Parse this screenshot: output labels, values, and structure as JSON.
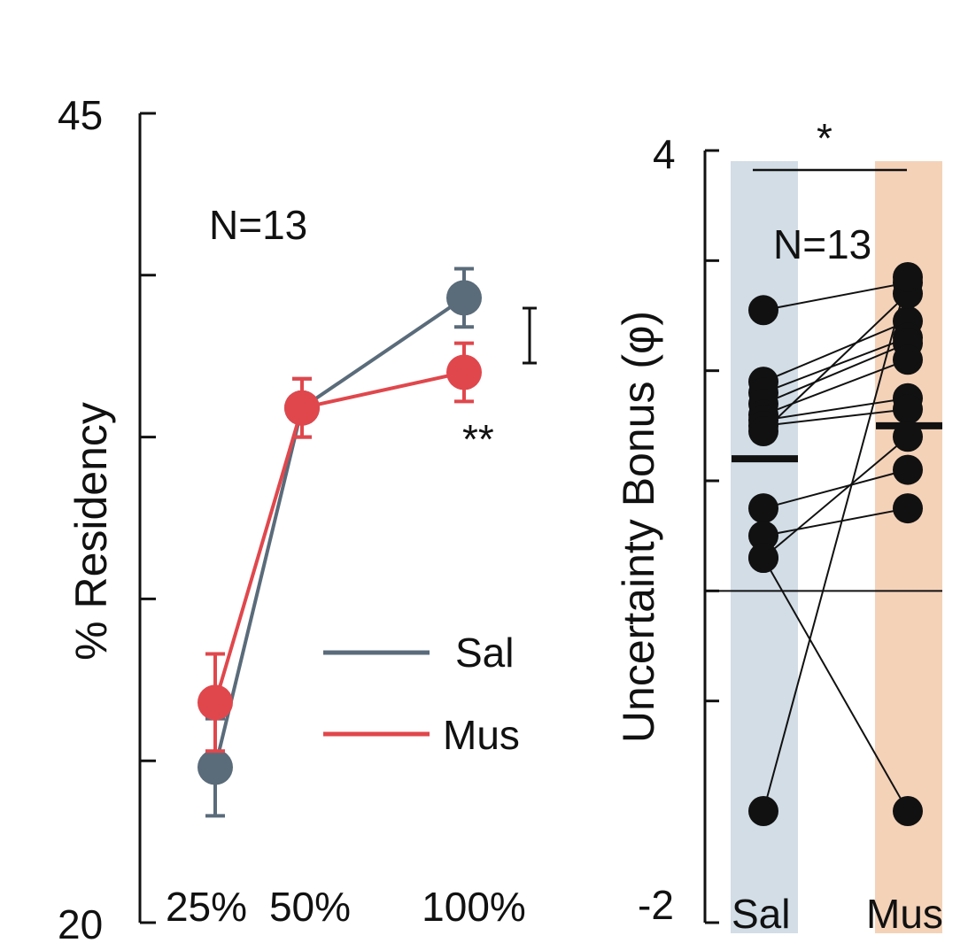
{
  "chart_data": [
    {
      "type": "line",
      "title": "",
      "xlabel": "",
      "ylabel": "% Residency",
      "ylim": [
        20,
        45
      ],
      "yticks": [
        20,
        25,
        30,
        35,
        40,
        45
      ],
      "ytick_labels_shown": [
        "45",
        "20"
      ],
      "categories": [
        "25%",
        "50%",
        "100%"
      ],
      "x": [
        25,
        50,
        100
      ],
      "annotation_n": "N=13",
      "significance": "**",
      "legend": {
        "placement": "bottom-right",
        "entries": [
          "Sal",
          "Mus"
        ]
      },
      "series": [
        {
          "name": "Sal",
          "color": "#5a6b7a",
          "values": [
            24.8,
            35.9,
            39.3
          ],
          "err": [
            1.5,
            0.9,
            0.9
          ]
        },
        {
          "name": "Mus",
          "color": "#e0474c",
          "values": [
            26.8,
            35.9,
            37.0
          ],
          "err": [
            1.5,
            0.9,
            0.9
          ]
        }
      ]
    },
    {
      "type": "scatter",
      "title": "",
      "xlabel": "",
      "ylabel": "Uncertainty Bonus (φ)",
      "ylim": [
        -2,
        4
      ],
      "yticks": [
        -2,
        -1,
        0,
        1,
        2,
        3,
        4
      ],
      "ytick_labels_shown": [
        "4",
        "-2"
      ],
      "categories": [
        "Sal",
        "Mus"
      ],
      "annotation_n": "N=13",
      "significance": "*",
      "band_colors": {
        "Sal": "#d2dde6",
        "Mus": "#f4d2b8"
      },
      "mean_lines": {
        "Sal": 1.2,
        "Mus": 1.5
      },
      "paired_points": [
        {
          "sal": 2.55,
          "mus": 2.8
        },
        {
          "sal": 1.9,
          "mus": 2.45
        },
        {
          "sal": 1.8,
          "mus": 2.3
        },
        {
          "sal": 1.7,
          "mus": 2.25
        },
        {
          "sal": 1.6,
          "mus": 2.1
        },
        {
          "sal": 1.55,
          "mus": 1.75
        },
        {
          "sal": 1.5,
          "mus": 1.65
        },
        {
          "sal": 1.45,
          "mus": 2.7
        },
        {
          "sal": 0.75,
          "mus": 1.1
        },
        {
          "sal": 0.5,
          "mus": 0.75
        },
        {
          "sal": 0.3,
          "mus": 1.4
        },
        {
          "sal": 0.3,
          "mus": -2.0
        },
        {
          "sal": -2.0,
          "mus": 2.85
        }
      ]
    }
  ]
}
